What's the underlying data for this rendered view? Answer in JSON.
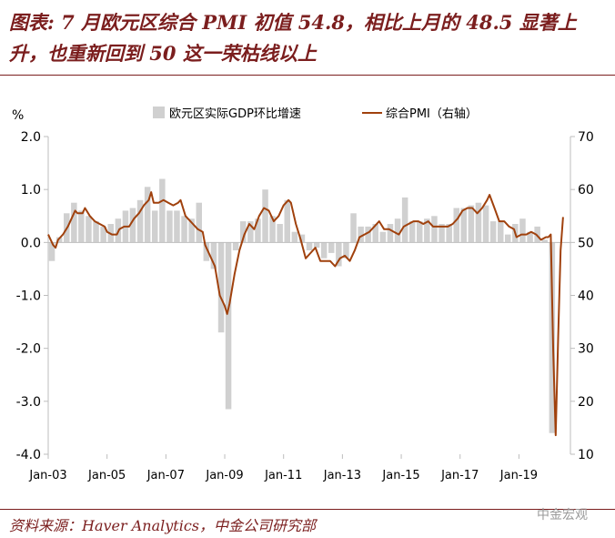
{
  "title": "图表: 7 月欧元区综合 PMI 初值 54.8，相比上月的 48.5 显著上升，也重新回到 50 这一荣枯线以上",
  "source": "资料来源：Haver Analytics，中金公司研究部",
  "watermark": "中金宏观",
  "colors": {
    "title": "#7b1e1e",
    "bar": "#d0d0d0",
    "line": "#a0410d"
  },
  "chart_data": {
    "type": "bar+line",
    "left_unit": "%",
    "ylim_left": [
      -4,
      2
    ],
    "ylim_right": [
      10,
      70
    ],
    "yticks_left": [
      "2.0",
      "1.0",
      "0.0",
      "-1.0",
      "-2.0",
      "-3.0",
      "-4.0"
    ],
    "yticks_right": [
      "70",
      "60",
      "50",
      "40",
      "30",
      "20",
      "10"
    ],
    "xticks": [
      "Jan-03",
      "Jan-05",
      "Jan-07",
      "Jan-09",
      "Jan-11",
      "Jan-13",
      "Jan-15",
      "Jan-17",
      "Jan-19"
    ],
    "legend": [
      "欧元区实际GDP环比增速",
      "综合PMI（右轴）"
    ],
    "legend_position": "top",
    "series": [
      {
        "name": "欧元区实际GDP环比增速",
        "type": "bar",
        "axis": "left",
        "quarters": [
          "2003Q1",
          "2003Q2",
          "2003Q3",
          "2003Q4",
          "2004Q1",
          "2004Q2",
          "2004Q3",
          "2004Q4",
          "2005Q1",
          "2005Q2",
          "2005Q3",
          "2005Q4",
          "2006Q1",
          "2006Q2",
          "2006Q3",
          "2006Q4",
          "2007Q1",
          "2007Q2",
          "2007Q3",
          "2007Q4",
          "2008Q1",
          "2008Q2",
          "2008Q3",
          "2008Q4",
          "2009Q1",
          "2009Q2",
          "2009Q3",
          "2009Q4",
          "2010Q1",
          "2010Q2",
          "2010Q3",
          "2010Q4",
          "2011Q1",
          "2011Q2",
          "2011Q3",
          "2011Q4",
          "2012Q1",
          "2012Q2",
          "2012Q3",
          "2012Q4",
          "2013Q1",
          "2013Q2",
          "2013Q3",
          "2013Q4",
          "2014Q1",
          "2014Q2",
          "2014Q3",
          "2014Q4",
          "2015Q1",
          "2015Q2",
          "2015Q3",
          "2015Q4",
          "2016Q1",
          "2016Q2",
          "2016Q3",
          "2016Q4",
          "2017Q1",
          "2017Q2",
          "2017Q3",
          "2017Q4",
          "2018Q1",
          "2018Q2",
          "2018Q3",
          "2018Q4",
          "2019Q1",
          "2019Q2",
          "2019Q3",
          "2019Q4",
          "2020Q1",
          "2020Q2"
        ],
        "values": [
          -0.35,
          0.1,
          0.55,
          0.75,
          0.6,
          0.5,
          0.4,
          0.3,
          0.35,
          0.45,
          0.6,
          0.65,
          0.8,
          1.05,
          0.6,
          1.2,
          0.6,
          0.6,
          0.5,
          0.45,
          0.75,
          -0.35,
          -0.5,
          -1.7,
          -3.15,
          -0.15,
          0.4,
          0.4,
          0.45,
          1.0,
          0.5,
          0.35,
          0.8,
          0.2,
          0.15,
          -0.15,
          -0.1,
          -0.3,
          -0.2,
          -0.45,
          -0.3,
          0.55,
          0.3,
          0.3,
          0.35,
          0.2,
          0.35,
          0.45,
          0.85,
          0.4,
          0.4,
          0.45,
          0.5,
          0.35,
          0.35,
          0.65,
          0.65,
          0.7,
          0.75,
          0.7,
          0.4,
          0.4,
          0.15,
          0.35,
          0.45,
          0.2,
          0.3,
          0.05,
          -3.6,
          0.0
        ]
      },
      {
        "name": "综合PMI（右轴）",
        "type": "line",
        "axis": "right",
        "points": [
          [
            "2003-01",
            51.5
          ],
          [
            "2003-02",
            50.5
          ],
          [
            "2003-03",
            49.5
          ],
          [
            "2003-04",
            49.0
          ],
          [
            "2003-05",
            50.5
          ],
          [
            "2003-06",
            51.0
          ],
          [
            "2003-07",
            51.5
          ],
          [
            "2003-09",
            53.0
          ],
          [
            "2003-11",
            55.0
          ],
          [
            "2003-12",
            56.0
          ],
          [
            "2004-01",
            55.5
          ],
          [
            "2004-03",
            55.5
          ],
          [
            "2004-04",
            56.5
          ],
          [
            "2004-06",
            55.0
          ],
          [
            "2004-08",
            54.0
          ],
          [
            "2004-10",
            53.5
          ],
          [
            "2004-12",
            53.0
          ],
          [
            "2005-01",
            52.0
          ],
          [
            "2005-03",
            51.5
          ],
          [
            "2005-05",
            51.5
          ],
          [
            "2005-06",
            52.5
          ],
          [
            "2005-08",
            53.0
          ],
          [
            "2005-10",
            53.0
          ],
          [
            "2005-12",
            54.5
          ],
          [
            "2006-02",
            55.5
          ],
          [
            "2006-04",
            57.0
          ],
          [
            "2006-06",
            58.0
          ],
          [
            "2006-07",
            59.5
          ],
          [
            "2006-08",
            57.5
          ],
          [
            "2006-10",
            57.5
          ],
          [
            "2006-12",
            58.0
          ],
          [
            "2007-02",
            57.5
          ],
          [
            "2007-04",
            57.0
          ],
          [
            "2007-06",
            57.5
          ],
          [
            "2007-07",
            58.0
          ],
          [
            "2007-09",
            55.0
          ],
          [
            "2007-11",
            54.0
          ],
          [
            "2007-12",
            53.5
          ],
          [
            "2008-02",
            52.5
          ],
          [
            "2008-04",
            52.0
          ],
          [
            "2008-05",
            49.5
          ],
          [
            "2008-07",
            47.5
          ],
          [
            "2008-09",
            45.5
          ],
          [
            "2008-11",
            40.0
          ],
          [
            "2009-01",
            38.0
          ],
          [
            "2009-02",
            36.5
          ],
          [
            "2009-03",
            38.5
          ],
          [
            "2009-05",
            44.0
          ],
          [
            "2009-07",
            48.5
          ],
          [
            "2009-09",
            51.5
          ],
          [
            "2009-11",
            53.5
          ],
          [
            "2010-01",
            52.5
          ],
          [
            "2010-03",
            55.0
          ],
          [
            "2010-05",
            56.5
          ],
          [
            "2010-07",
            56.0
          ],
          [
            "2010-09",
            54.0
          ],
          [
            "2010-11",
            55.0
          ],
          [
            "2011-01",
            57.0
          ],
          [
            "2011-03",
            58.0
          ],
          [
            "2011-04",
            57.5
          ],
          [
            "2011-06",
            53.5
          ],
          [
            "2011-08",
            50.5
          ],
          [
            "2011-10",
            47.0
          ],
          [
            "2011-12",
            48.0
          ],
          [
            "2012-02",
            49.0
          ],
          [
            "2012-04",
            46.5
          ],
          [
            "2012-06",
            46.5
          ],
          [
            "2012-08",
            46.5
          ],
          [
            "2012-10",
            45.5
          ],
          [
            "2012-12",
            47.0
          ],
          [
            "2013-02",
            47.5
          ],
          [
            "2013-04",
            46.5
          ],
          [
            "2013-06",
            48.5
          ],
          [
            "2013-08",
            51.0
          ],
          [
            "2013-10",
            51.5
          ],
          [
            "2013-12",
            52.0
          ],
          [
            "2014-02",
            53.0
          ],
          [
            "2014-04",
            54.0
          ],
          [
            "2014-06",
            52.5
          ],
          [
            "2014-08",
            52.5
          ],
          [
            "2014-10",
            52.0
          ],
          [
            "2014-12",
            51.5
          ],
          [
            "2015-02",
            53.0
          ],
          [
            "2015-04",
            53.5
          ],
          [
            "2015-06",
            54.0
          ],
          [
            "2015-08",
            54.0
          ],
          [
            "2015-10",
            53.5
          ],
          [
            "2015-12",
            54.0
          ],
          [
            "2016-02",
            53.0
          ],
          [
            "2016-04",
            53.0
          ],
          [
            "2016-06",
            53.0
          ],
          [
            "2016-08",
            53.0
          ],
          [
            "2016-10",
            53.5
          ],
          [
            "2016-12",
            54.5
          ],
          [
            "2017-02",
            56.0
          ],
          [
            "2017-04",
            56.5
          ],
          [
            "2017-06",
            56.5
          ],
          [
            "2017-08",
            55.5
          ],
          [
            "2017-10",
            56.5
          ],
          [
            "2017-12",
            58.0
          ],
          [
            "2018-01",
            59.0
          ],
          [
            "2018-03",
            56.5
          ],
          [
            "2018-05",
            54.0
          ],
          [
            "2018-07",
            54.0
          ],
          [
            "2018-09",
            53.0
          ],
          [
            "2018-11",
            52.5
          ],
          [
            "2018-12",
            51.0
          ],
          [
            "2019-02",
            51.5
          ],
          [
            "2019-04",
            51.5
          ],
          [
            "2019-06",
            52.0
          ],
          [
            "2019-08",
            51.5
          ],
          [
            "2019-10",
            50.5
          ],
          [
            "2019-12",
            51.0
          ],
          [
            "2020-01",
            51.0
          ],
          [
            "2020-02",
            51.5
          ],
          [
            "2020-03",
            29.5
          ],
          [
            "2020-04",
            13.6
          ],
          [
            "2020-05",
            31.9
          ],
          [
            "2020-06",
            48.5
          ],
          [
            "2020-07",
            54.8
          ]
        ]
      }
    ]
  }
}
